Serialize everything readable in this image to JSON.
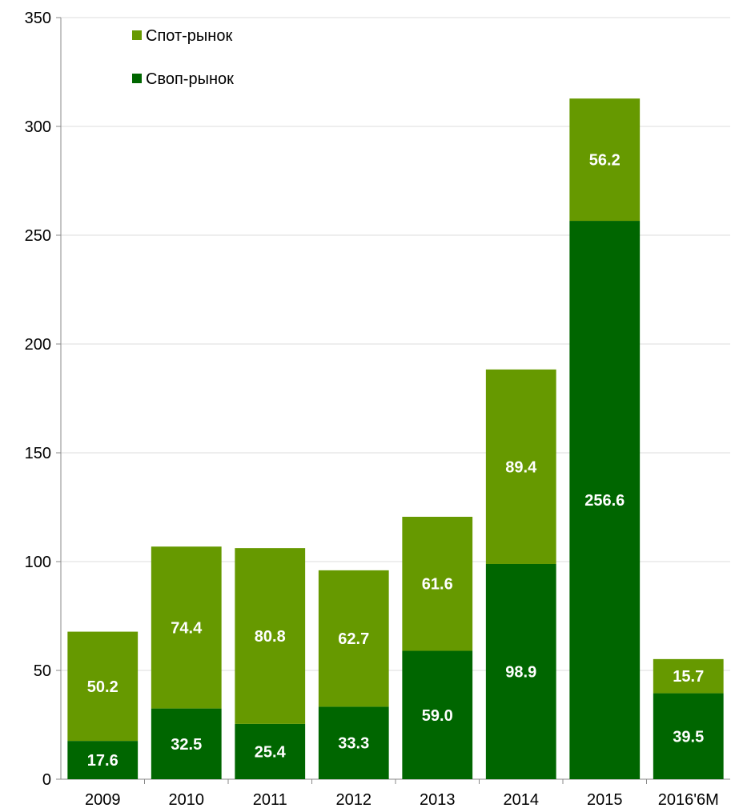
{
  "chart_data": {
    "type": "bar",
    "stacked": true,
    "categories": [
      "2009",
      "2010",
      "2011",
      "2012",
      "2013",
      "2014",
      "2015",
      "2016'6M"
    ],
    "series": [
      {
        "name": "Своп-рынок",
        "color": "#006600",
        "values": [
          17.6,
          32.5,
          25.4,
          33.3,
          59.0,
          98.9,
          256.6,
          39.5
        ]
      },
      {
        "name": "Спот-рынок",
        "color": "#669900",
        "values": [
          50.2,
          74.4,
          80.8,
          62.7,
          61.6,
          89.4,
          56.2,
          15.7
        ]
      }
    ],
    "data_labels": {
      "swap": [
        "17.6",
        "32.5",
        "25.4",
        "33.3",
        "59.0",
        "98.9",
        "256.6",
        "39.5"
      ],
      "spot": [
        "50.2",
        "74.4",
        "80.8",
        "62.7",
        "61.6",
        "89.4",
        "56.2",
        "15.7"
      ]
    },
    "y_ticks": [
      "0",
      "50",
      "100",
      "150",
      "200",
      "250",
      "300",
      "350"
    ],
    "ylim": [
      0,
      350
    ],
    "grid": true,
    "legend_position": "top-left",
    "legend": [
      {
        "label": "Спот-рынок",
        "color": "#669900"
      },
      {
        "label": "Своп-рынок",
        "color": "#006600"
      }
    ]
  }
}
